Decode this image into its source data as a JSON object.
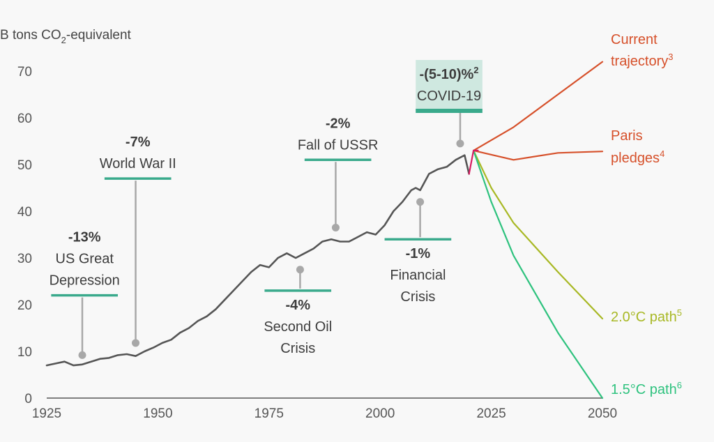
{
  "chart_data": {
    "type": "line",
    "ylabel": {
      "main": "B tons CO",
      "sub": "2",
      "tail": "-equivalent"
    },
    "xlim": [
      1925,
      2050
    ],
    "ylim": [
      0,
      70
    ],
    "x_ticks": [
      "1925",
      "1950",
      "1975",
      "2000",
      "2025",
      "2050"
    ],
    "y_ticks": [
      "0",
      "10",
      "20",
      "30",
      "40",
      "50",
      "60",
      "70"
    ],
    "grid": false,
    "colors": {
      "history": "#555555",
      "annotation_bar": "#3aaa8c",
      "annotation_stem": "#a8a8a8",
      "covid_box": "#cfe8e0",
      "current": "#d6502a",
      "paris": "#d6502a",
      "two_deg": "#a8b824",
      "one_five": "#2ec27e",
      "covid_drop": "#d81b60"
    },
    "history": {
      "x": [
        1925,
        1927,
        1929,
        1931,
        1933,
        1935,
        1937,
        1939,
        1941,
        1943,
        1945,
        1947,
        1949,
        1951,
        1953,
        1955,
        1957,
        1959,
        1961,
        1963,
        1965,
        1967,
        1969,
        1971,
        1973,
        1975,
        1977,
        1979,
        1981,
        1983,
        1985,
        1987,
        1989,
        1991,
        1993,
        1995,
        1997,
        1999,
        2001,
        2003,
        2005,
        2007,
        2008,
        2009,
        2011,
        2013,
        2015,
        2017,
        2019,
        2020
      ],
      "values": [
        7.0,
        7.4,
        7.8,
        7.0,
        7.2,
        7.8,
        8.4,
        8.6,
        9.2,
        9.4,
        9.0,
        10.0,
        10.8,
        11.8,
        12.5,
        14.0,
        15.0,
        16.5,
        17.5,
        19.0,
        21.0,
        23.0,
        25.0,
        27.0,
        28.5,
        28.0,
        30.0,
        31.0,
        30.0,
        31.0,
        32.0,
        33.5,
        34.0,
        33.5,
        33.5,
        34.5,
        35.5,
        35.0,
        37.0,
        40.0,
        42.0,
        44.5,
        45.0,
        44.5,
        48.0,
        49.0,
        49.5,
        51.0,
        52.0,
        48.0
      ]
    },
    "projections": [
      {
        "name": "Current trajectory",
        "sup": "3",
        "color_key": "current",
        "x": [
          2021,
          2030,
          2040,
          2050
        ],
        "values": [
          53,
          58,
          65,
          72
        ]
      },
      {
        "name": "Paris pledges",
        "sup": "4",
        "color_key": "paris",
        "x": [
          2021,
          2030,
          2040,
          2050
        ],
        "values": [
          53,
          51,
          52.5,
          52.8
        ]
      },
      {
        "name": "2.0°C path",
        "sup": "5",
        "color_key": "two_deg",
        "x": [
          2021,
          2025,
          2030,
          2040,
          2050
        ],
        "values": [
          53,
          45,
          37.5,
          27,
          17
        ]
      },
      {
        "name": "1.5°C path",
        "sup": "6",
        "color_key": "one_five",
        "x": [
          2021,
          2025,
          2030,
          2040,
          2050
        ],
        "values": [
          53,
          42,
          30.5,
          14,
          0
        ]
      }
    ],
    "covid_drop": {
      "x": [
        2020,
        2021,
        2022
      ],
      "values": [
        48,
        53,
        53
      ]
    },
    "annotations": [
      {
        "key": "depression",
        "value": "-13%",
        "lines": [
          "US Great",
          "Depression"
        ],
        "point": [
          1933,
          9.2
        ],
        "bar_y": 22,
        "bar_x": [
          1926,
          1941
        ],
        "label_above": true
      },
      {
        "key": "ww2",
        "value": "-7%",
        "lines": [
          "World  War II"
        ],
        "point": [
          1945,
          11.8
        ],
        "bar_y": 47,
        "bar_x": [
          1938,
          1953
        ],
        "label_above": true
      },
      {
        "key": "oil",
        "value": "-4%",
        "lines": [
          "Second Oil",
          "Crisis"
        ],
        "point": [
          1982,
          27.5
        ],
        "bar_y": 23,
        "bar_x": [
          1974,
          1989
        ],
        "label_above": false
      },
      {
        "key": "ussr",
        "value": "-2%",
        "lines": [
          "Fall of  USSR"
        ],
        "point": [
          1990,
          36.5
        ],
        "bar_y": 51,
        "bar_x": [
          1983,
          1998
        ],
        "label_above": true
      },
      {
        "key": "financial",
        "value": "-1%",
        "lines": [
          "Financial",
          "Crisis"
        ],
        "point": [
          2009,
          42
        ],
        "bar_y": 34,
        "bar_x": [
          2001,
          2016
        ],
        "label_above": false
      },
      {
        "key": "covid",
        "value": "-(5-10)%",
        "value_sup": "2",
        "lines": [
          "COVID-19"
        ],
        "point": [
          2018,
          54.5
        ],
        "bar_y": 61.5,
        "bar_x": [
          2008,
          2023
        ],
        "label_above": true,
        "boxed": true
      }
    ]
  }
}
